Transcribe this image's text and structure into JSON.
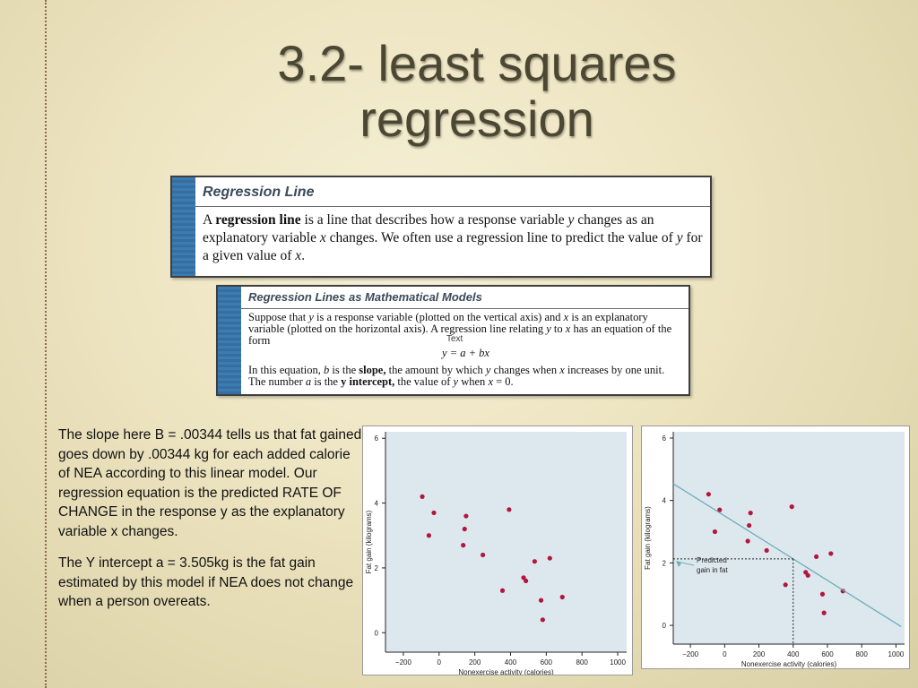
{
  "slide": {
    "title_line1": "3.2- least squares",
    "title_line2": "regression"
  },
  "box1": {
    "heading": "Regression Line",
    "body_html": "A <b>regression line</b> is a line that describes how a response variable <i>y</i> changes as an explanatory variable <i>x</i> changes. We often use a regression line to predict the value of <i>y</i> for a given value of <i>x</i>."
  },
  "box2": {
    "heading": "Regression Lines as Mathematical Models",
    "para1_html": "Suppose that <i>y</i> is a response variable (plotted on the vertical axis) and <i>x</i> is an explanatory variable (plotted on the horizontal axis). A regression line relating <i>y</i> to <i>x</i> has an equation of the form",
    "equation": "y = a + bx",
    "para2_html": "In this equation, <i>b</i> is the <b>slope,</b> the amount by which <i>y</i> changes when <i>x</i> increases by one unit. The number <i>a</i> is the <b>y intercept,</b> the value of <i>y</i> when <i>x</i> = 0."
  },
  "text_mark": "Text",
  "explanation": {
    "para1": "The slope here B = .00344 tells us that fat gained goes down by .00344 kg for each added calorie of NEA according to this linear model.  Our regression equation is the predicted RATE OF CHANGE in the response y as the explanatory variable x changes.",
    "para2": "The Y intercept a = 3.505kg is the fat gain estimated by this model if NEA does not change when a person overeats."
  },
  "chart_data": [
    {
      "type": "scatter",
      "xlabel": "Nonexercise activity (calories)",
      "ylabel": "Fat gain (kilograms)",
      "xlim": [
        -300,
        1050
      ],
      "ylim": [
        -0.6,
        6.2
      ],
      "xticks": [
        "−200",
        "0",
        "200",
        "400",
        "600",
        "800",
        "1000"
      ],
      "xtick_values": [
        -200,
        0,
        200,
        400,
        600,
        800,
        1000
      ],
      "yticks": [
        "0",
        "2",
        "4",
        "6"
      ],
      "ytick_values": [
        0,
        2,
        4,
        6
      ],
      "point_color": "#b2163c",
      "points": [
        [
          -94,
          4.2
        ],
        [
          -57,
          3.0
        ],
        [
          -29,
          3.7
        ],
        [
          135,
          2.7
        ],
        [
          143,
          3.2
        ],
        [
          151,
          3.6
        ],
        [
          245,
          2.4
        ],
        [
          355,
          1.3
        ],
        [
          392,
          3.8
        ],
        [
          473,
          1.7
        ],
        [
          486,
          1.6
        ],
        [
          535,
          2.2
        ],
        [
          571,
          1.0
        ],
        [
          580,
          0.4
        ],
        [
          620,
          2.3
        ],
        [
          690,
          1.1
        ]
      ]
    },
    {
      "type": "scatter",
      "xlabel": "Nonexercise activity (calories)",
      "ylabel": "Fat gain (kilograms)",
      "xlim": [
        -300,
        1050
      ],
      "ylim": [
        -0.6,
        6.2
      ],
      "xticks": [
        "−200",
        "0",
        "200",
        "400",
        "600",
        "800",
        "1000"
      ],
      "xtick_values": [
        -200,
        0,
        200,
        400,
        600,
        800,
        1000
      ],
      "yticks": [
        "0",
        "2",
        "4",
        "6"
      ],
      "ytick_values": [
        0,
        2,
        4,
        6
      ],
      "point_color": "#b2163c",
      "line_color": "#6aaeb8",
      "regression": {
        "a": 3.505,
        "b": -0.00344
      },
      "prediction_x": 400,
      "annotation": [
        "Predicted",
        "gain in fat"
      ],
      "points": [
        [
          -94,
          4.2
        ],
        [
          -57,
          3.0
        ],
        [
          -29,
          3.7
        ],
        [
          135,
          2.7
        ],
        [
          143,
          3.2
        ],
        [
          151,
          3.6
        ],
        [
          245,
          2.4
        ],
        [
          355,
          1.3
        ],
        [
          392,
          3.8
        ],
        [
          473,
          1.7
        ],
        [
          486,
          1.6
        ],
        [
          535,
          2.2
        ],
        [
          571,
          1.0
        ],
        [
          580,
          0.4
        ],
        [
          620,
          2.3
        ],
        [
          690,
          1.1
        ]
      ]
    }
  ]
}
